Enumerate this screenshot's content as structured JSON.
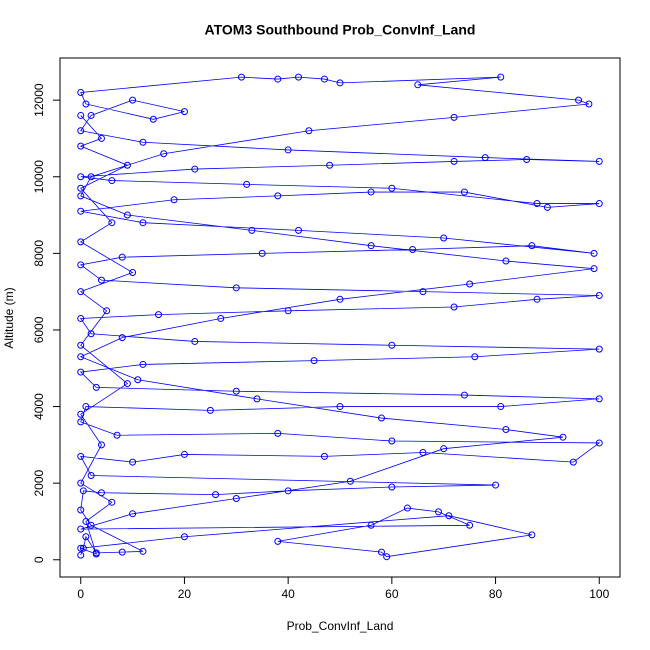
{
  "chart_data": {
    "type": "line",
    "title": "ATOM3 Southbound Prob_ConvInf_Land",
    "xlabel": "Prob_ConvInf_Land",
    "ylabel": "Altitude (m)",
    "xlim": [
      -4,
      104
    ],
    "ylim": [
      -450,
      13100
    ],
    "xticks": [
      0,
      20,
      40,
      60,
      80,
      100
    ],
    "yticks": [
      0,
      2000,
      4000,
      6000,
      8000,
      10000,
      12000
    ],
    "x": [
      0,
      0.5,
      1,
      3,
      8,
      12,
      2,
      0,
      0.5,
      4,
      26,
      40,
      60,
      80,
      2,
      0,
      10,
      20,
      47,
      66,
      95,
      100,
      60,
      38,
      7,
      0,
      1,
      25,
      50,
      81,
      100,
      74,
      30,
      3,
      0,
      12,
      45,
      76,
      100,
      60,
      22,
      2,
      0,
      15,
      40,
      72,
      88,
      100,
      66,
      30,
      4,
      0,
      8,
      35,
      64,
      87,
      99,
      70,
      42,
      12,
      0,
      18,
      38,
      56,
      74,
      90,
      100,
      88,
      60,
      32,
      6,
      0,
      22,
      48,
      72,
      86,
      100,
      78,
      40,
      12,
      0,
      2,
      10,
      20,
      14,
      1,
      0,
      31,
      38,
      42,
      47,
      50,
      81,
      65,
      96,
      98,
      72,
      44,
      16,
      2,
      0,
      9,
      33,
      56,
      82,
      99,
      75,
      50,
      27,
      8,
      0,
      11,
      34,
      58,
      82,
      93,
      70,
      52,
      30,
      10,
      0,
      75,
      69,
      63,
      56,
      38,
      58,
      59,
      87,
      71,
      20,
      0,
      3,
      1,
      6,
      0,
      4,
      0,
      9,
      0,
      5,
      0,
      10,
      0,
      6,
      0,
      9,
      0,
      4,
      0
    ],
    "series": [
      {
        "color": "#0000ff",
        "values": [
          120,
          300,
          600,
          180,
          200,
          220,
          900,
          1300,
          1800,
          1750,
          1700,
          1800,
          1900,
          1950,
          2200,
          2700,
          2550,
          2750,
          2700,
          2800,
          2550,
          3050,
          3100,
          3300,
          3250,
          3600,
          4000,
          3900,
          4000,
          4000,
          4200,
          4300,
          4400,
          4500,
          4900,
          5100,
          5200,
          5300,
          5500,
          5600,
          5700,
          5900,
          6300,
          6400,
          6500,
          6600,
          6800,
          6900,
          7000,
          7100,
          7300,
          7700,
          7900,
          8000,
          8100,
          8200,
          8000,
          8400,
          8600,
          8800,
          9100,
          9400,
          9500,
          9600,
          9600,
          9200,
          9300,
          9300,
          9700,
          9800,
          9900,
          10000,
          10200,
          10300,
          10400,
          10450,
          10400,
          10500,
          10700,
          10900,
          11200,
          11600,
          12000,
          11700,
          11500,
          11900,
          12200,
          12600,
          12550,
          12600,
          12550,
          12450,
          12600,
          12400,
          12000,
          11900,
          11550,
          11200,
          10600,
          10000,
          9500,
          9000,
          8600,
          8200,
          7800,
          7600,
          7200,
          6800,
          6300,
          5800,
          5300,
          4700,
          4200,
          3700,
          3400,
          3200,
          2900,
          2050,
          1600,
          1200,
          800,
          900,
          1250,
          1350,
          900,
          480,
          200,
          80,
          650,
          1150,
          600,
          300,
          150,
          1000,
          1500,
          2000,
          3000,
          3800,
          4600,
          5600,
          6500,
          7000,
          7500,
          8300,
          8800,
          9700,
          10300,
          10800,
          11000,
          11600
        ]
      }
    ]
  }
}
